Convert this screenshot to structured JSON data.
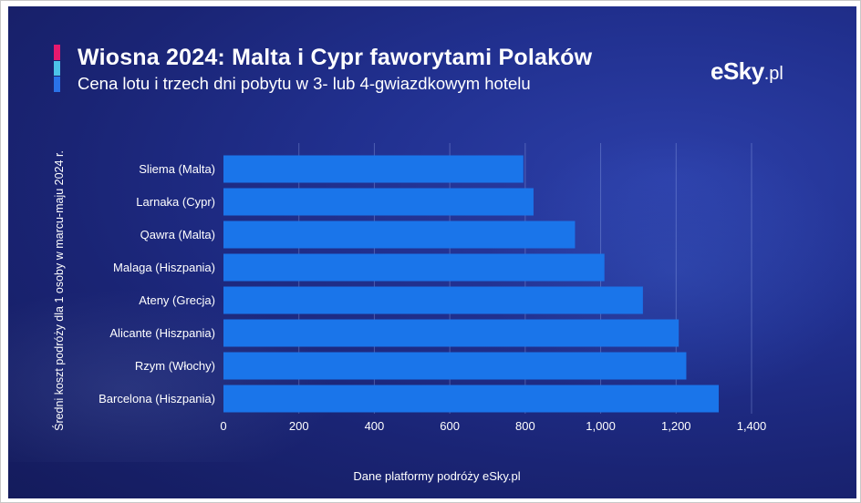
{
  "header": {
    "title": "Wiosna 2024: Malta i Cypr faworytami Polaków",
    "subtitle": "Cena lotu i trzech dni pobytu w 3- lub 4-gwiazdkowym hotelu"
  },
  "logo": {
    "brand": "eSky",
    "suffix": ".pl"
  },
  "footer": {
    "source": "Dane platformy podróży eSky.pl"
  },
  "colors": {
    "bar": "#1a75ea",
    "accent_pink": "#e6196e",
    "accent_cyan": "#4cc3e8",
    "accent_blue": "#2a72e8"
  },
  "chart_data": {
    "type": "bar",
    "orientation": "horizontal",
    "title": "Wiosna 2024: Malta i Cypr faworytami Polaków",
    "subtitle": "Cena lotu i trzech dni pobytu w 3- lub 4-gwiazdkowym hotelu",
    "ylabel": "Średni koszt podróży dla 1 osoby w marcu-maju 2024 r.",
    "xlabel": "Dane platformy podróży eSky.pl",
    "categories": [
      "Sliema (Malta)",
      "Larnaka (Cypr)",
      "Qawra (Malta)",
      "Malaga (Hiszpania)",
      "Ateny (Grecja)",
      "Alicante (Hiszpania)",
      "Rzym (Włochy)",
      "Barcelona (Hiszpania)"
    ],
    "values": [
      795,
      822,
      932,
      1010,
      1112,
      1207,
      1227,
      1313
    ],
    "xlim": [
      0,
      1400
    ],
    "xticks": [
      0,
      200,
      400,
      600,
      800,
      1000,
      1200,
      1400
    ],
    "xtick_labels": [
      "0",
      "200",
      "400",
      "600",
      "800",
      "1,000",
      "1,200",
      "1,400"
    ],
    "grid": true
  }
}
